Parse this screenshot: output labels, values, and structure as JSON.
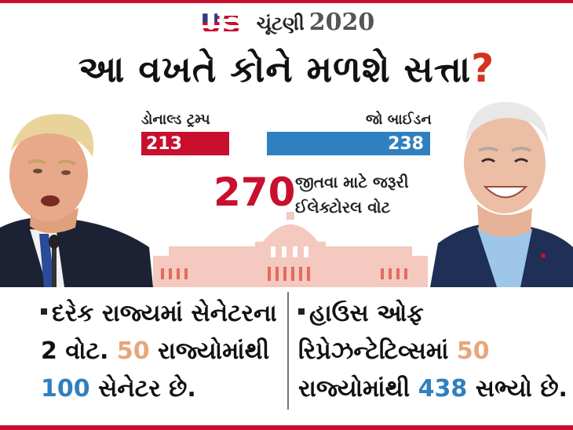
{
  "header": {
    "logo_text": "US",
    "kicker": "ચૂંટણી",
    "year": "2020",
    "headline": "આ વખતે કોને મળશે સત્તા",
    "headline_mark": "?"
  },
  "candidates": {
    "trump": {
      "name": "ડોનાલ્ડ ટ્રમ્પ",
      "votes": "213",
      "color": "#c8102e"
    },
    "biden": {
      "name": "જો બાઈડન",
      "votes": "238",
      "color": "#2f80c0"
    }
  },
  "threshold": {
    "number": "270",
    "label_line1": "જીતવા માટે જરૂરી",
    "label_line2": "ઈલેક્ટોરલ વોટ"
  },
  "info_left": {
    "line1": "દરેક રાજ્યમાં સેનેટરના",
    "line2_prefix": "2 વોટ.",
    "line2_number": "50",
    "line2_suffix": "રાજ્યોમાંથી",
    "line3_number": "100",
    "line3_suffix": "સેનેટર છે."
  },
  "info_right": {
    "line1": "હાઉસ ઓફ",
    "line2_prefix": "રિપ્રેઝન્ટેટિવ્સમાં",
    "line2_number": "50",
    "line3_prefix": "રાજ્યોમાંથી",
    "line3_number": "438",
    "line3_suffix": "સભ્યો છે."
  }
}
